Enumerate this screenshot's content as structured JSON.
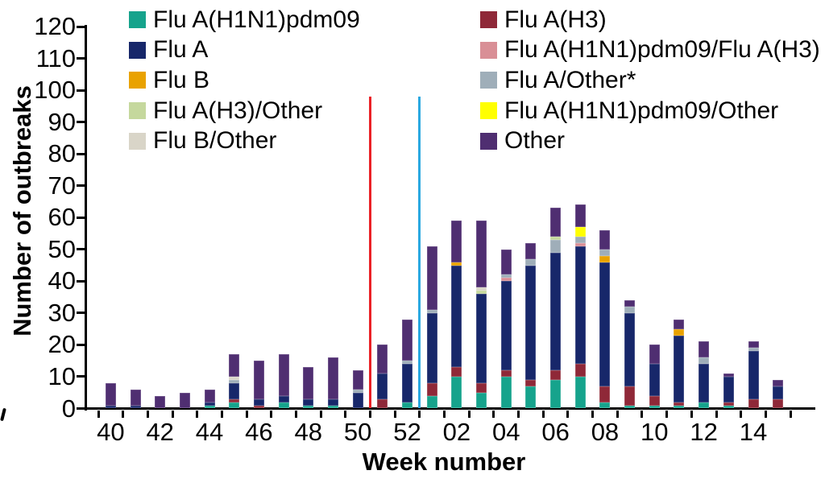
{
  "chart_data": {
    "type": "bar",
    "stacked": true,
    "title": "",
    "xlabel": "Week number",
    "ylabel": "Number of outbreaks",
    "ylim": [
      0,
      120
    ],
    "ytick_step": 10,
    "grid": false,
    "legend_position": "top",
    "categories": [
      "40",
      "41",
      "42",
      "43",
      "44",
      "45",
      "46",
      "47",
      "48",
      "49",
      "50",
      "51",
      "52",
      "01",
      "02",
      "03",
      "04",
      "05",
      "06",
      "07",
      "08",
      "09",
      "10",
      "11",
      "12",
      "13",
      "14",
      "15"
    ],
    "visible_x_tick_labels": [
      "40",
      "42",
      "44",
      "46",
      "48",
      "50",
      "52",
      "02",
      "04",
      "06",
      "08",
      "10",
      "12",
      "14"
    ],
    "series": [
      {
        "name": "Flu A(H1N1)pdm09",
        "color": "#16A38C",
        "values": [
          0,
          0,
          0,
          0,
          1,
          2,
          0,
          2,
          1,
          1,
          0,
          0,
          2,
          4,
          10,
          5,
          10,
          7,
          9,
          10,
          2,
          1,
          1,
          1,
          2,
          1,
          0,
          0
        ]
      },
      {
        "name": "Flu A(H3)",
        "color": "#8F2838",
        "values": [
          0,
          0,
          0,
          0,
          0,
          1,
          1,
          0,
          0,
          0,
          0,
          3,
          0,
          4,
          3,
          3,
          2,
          2,
          3,
          4,
          5,
          6,
          3,
          1,
          0,
          1,
          3,
          3
        ]
      },
      {
        "name": "Flu A",
        "color": "#17276A",
        "values": [
          1,
          1,
          0,
          0,
          1,
          5,
          2,
          2,
          2,
          2,
          5,
          8,
          12,
          22,
          32,
          28,
          28,
          36,
          37,
          37,
          39,
          23,
          10,
          21,
          12,
          8,
          15,
          4
        ]
      },
      {
        "name": "Flu B",
        "color": "#E9A200",
        "values": [
          0,
          0,
          0,
          0,
          0,
          0,
          0,
          0,
          0,
          0,
          0,
          0,
          0,
          0,
          1,
          0,
          0,
          0,
          0,
          0,
          2,
          0,
          0,
          2,
          0,
          0,
          0,
          0
        ]
      },
      {
        "name": "Flu A(H1N1)pdm09/Flu A(H3)",
        "color": "#D98F96",
        "values": [
          0,
          0,
          0,
          0,
          0,
          0,
          0,
          0,
          0,
          0,
          0,
          0,
          0,
          0,
          0,
          0,
          1,
          0,
          0,
          1,
          0,
          0,
          0,
          0,
          0,
          0,
          0,
          0
        ]
      },
      {
        "name": "Flu A/Other*",
        "color": "#9FAEB9",
        "values": [
          0,
          0,
          0,
          0,
          0,
          1,
          0,
          0,
          0,
          0,
          1,
          0,
          1,
          1,
          0,
          0,
          1,
          2,
          4,
          2,
          2,
          2,
          0,
          0,
          2,
          0,
          1,
          0
        ]
      },
      {
        "name": "Flu A(H3)/Other",
        "color": "#C5D89D",
        "values": [
          0,
          0,
          0,
          0,
          0,
          0,
          0,
          0,
          0,
          0,
          0,
          0,
          0,
          0,
          0,
          1,
          0,
          0,
          1,
          0,
          0,
          0,
          0,
          0,
          0,
          0,
          0,
          0
        ]
      },
      {
        "name": "Flu A(H1N1)pdm09/Other",
        "color": "#FFFF00",
        "values": [
          0,
          0,
          0,
          0,
          0,
          0,
          0,
          0,
          0,
          0,
          0,
          0,
          0,
          0,
          0,
          0,
          0,
          0,
          0,
          3,
          0,
          0,
          0,
          0,
          0,
          0,
          0,
          0
        ]
      },
      {
        "name": "Flu B/Other",
        "color": "#D9D5C8",
        "values": [
          0,
          0,
          0,
          0,
          0,
          1,
          0,
          0,
          0,
          0,
          0,
          0,
          0,
          0,
          0,
          1,
          0,
          0,
          0,
          0,
          0,
          0,
          0,
          0,
          0,
          0,
          0,
          0
        ]
      },
      {
        "name": "Other",
        "color": "#4F2E71",
        "values": [
          7,
          5,
          4,
          5,
          4,
          7,
          12,
          13,
          10,
          13,
          6,
          9,
          13,
          20,
          13,
          21,
          8,
          5,
          9,
          7,
          6,
          2,
          6,
          3,
          5,
          1,
          2,
          2
        ]
      }
    ],
    "legend_columns": [
      [
        "Flu A(H1N1)pdm09",
        "Flu A",
        "Flu B",
        "Flu A(H3)/Other",
        "Flu B/Other"
      ],
      [
        "Flu A(H3)",
        "Flu A(H1N1)pdm09/Flu A(H3)",
        "Flu A/Other*",
        "Flu A(H1N1)pdm09/Other",
        "Other"
      ]
    ],
    "annotations": {
      "vertical_lines": [
        {
          "color": "#EA2127",
          "after_category": "50",
          "top_value": 98
        },
        {
          "color": "#2BA9E1",
          "after_category": "52",
          "top_value": 98
        }
      ]
    }
  }
}
